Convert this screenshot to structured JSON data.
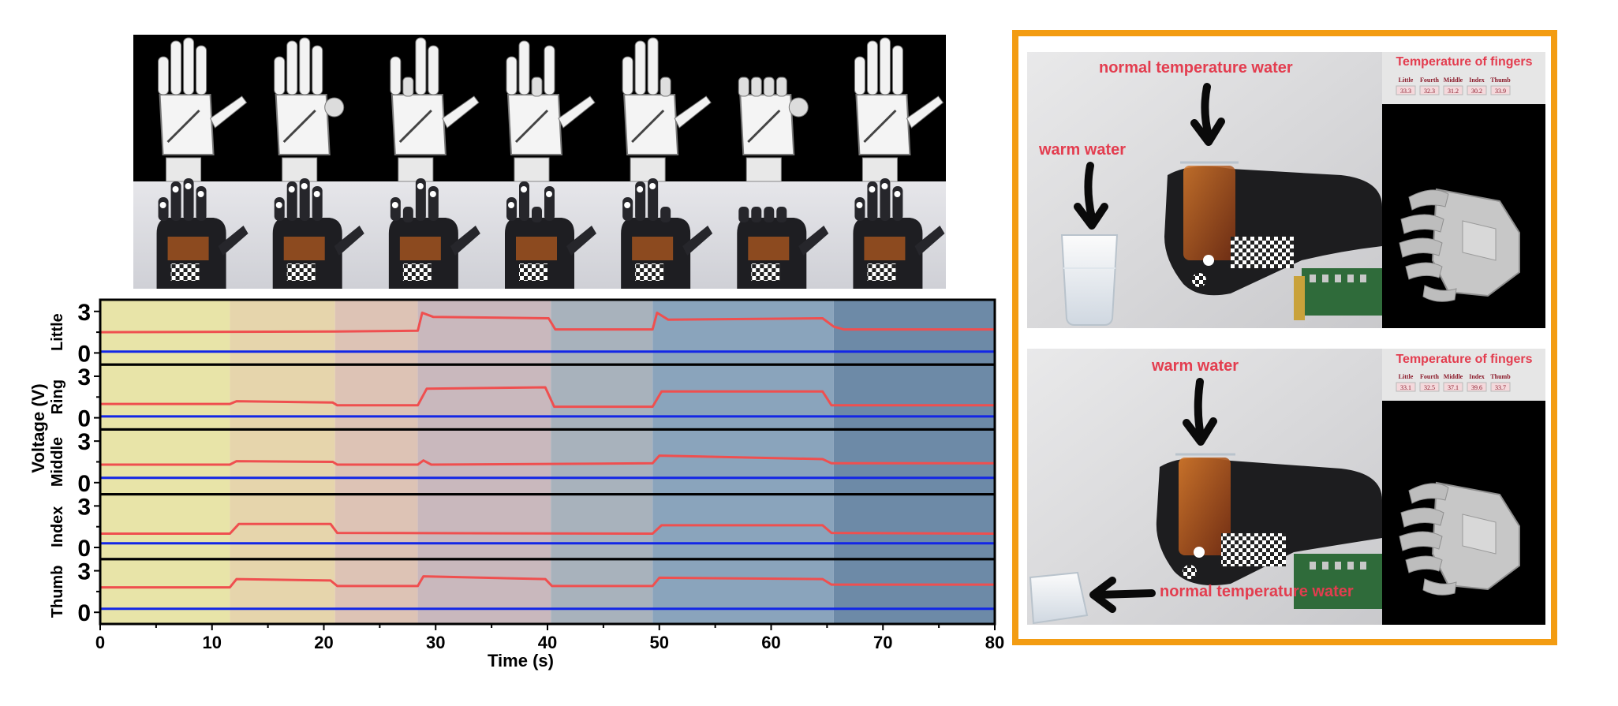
{
  "colors": {
    "orange_frame": "#f39c12",
    "red_signal": "#ef4f4f",
    "blue_signal": "#1226e6",
    "annotation_red": "#e33d4f",
    "phase_colors": [
      "#e8e4a8",
      "#e6d5ac",
      "#ddc3b5",
      "#c9b8bd",
      "#a8b2bc",
      "#8aa4bc",
      "#6d8aa7"
    ]
  },
  "hand_sequence": {
    "gestures": [
      "index-bent",
      "thumb-bent",
      "ring-bent",
      "middle-bent",
      "palm-bent",
      "fist",
      "open"
    ]
  },
  "chart_data": {
    "type": "line",
    "xlabel": "Time (s)",
    "ylabel": "Voltage (V)",
    "xlim": [
      0,
      80
    ],
    "xticks": [
      0,
      10,
      20,
      30,
      40,
      50,
      60,
      70,
      80
    ],
    "yticks": [
      0,
      3
    ],
    "ylim": [
      -0.5,
      3.5
    ],
    "phase_boundaries": [
      0,
      11.6,
      21,
      28.4,
      40.3,
      49.4,
      65.6,
      80
    ],
    "panels": [
      {
        "name": "Little",
        "series": [
          {
            "color": "red",
            "x": [
              0,
              21,
              28.4,
              28.8,
              29.8,
              40.1,
              40.7,
              49.4,
              49.8,
              50.8,
              64.6,
              65.6,
              66.5,
              80
            ],
            "y": [
              1.5,
              1.55,
              1.6,
              2.9,
              2.6,
              2.5,
              1.7,
              1.7,
              2.9,
              2.4,
              2.5,
              1.9,
              1.7,
              1.7
            ]
          },
          {
            "color": "blue",
            "x": [
              0,
              80
            ],
            "y": [
              0.1,
              0.1
            ]
          }
        ]
      },
      {
        "name": "Ring",
        "series": [
          {
            "color": "red",
            "x": [
              0,
              11.6,
              12.2,
              20.8,
              21.2,
              28.4,
              29.2,
              39.8,
              40.6,
              49.4,
              50.2,
              64.6,
              65.4,
              80
            ],
            "y": [
              1.0,
              1.0,
              1.2,
              1.1,
              0.9,
              0.9,
              2.1,
              2.2,
              0.8,
              0.8,
              1.9,
              1.9,
              0.9,
              0.9
            ]
          },
          {
            "color": "blue",
            "x": [
              0,
              80
            ],
            "y": [
              0.1,
              0.1
            ]
          }
        ]
      },
      {
        "name": "Middle",
        "series": [
          {
            "color": "red",
            "x": [
              0,
              11.6,
              12.2,
              20.8,
              21.2,
              28.4,
              28.9,
              29.6,
              49.4,
              50.0,
              64.6,
              65.4,
              80
            ],
            "y": [
              1.3,
              1.3,
              1.55,
              1.5,
              1.3,
              1.3,
              1.6,
              1.3,
              1.4,
              1.95,
              1.7,
              1.4,
              1.4
            ]
          },
          {
            "color": "blue",
            "x": [
              0,
              80
            ],
            "y": [
              0.35,
              0.35
            ]
          }
        ]
      },
      {
        "name": "Index",
        "series": [
          {
            "color": "red",
            "x": [
              0,
              11.6,
              12.4,
              20.6,
              21.2,
              49.4,
              50.2,
              64.6,
              65.4,
              80
            ],
            "y": [
              1.0,
              1.0,
              1.7,
              1.7,
              1.05,
              1.0,
              1.6,
              1.6,
              1.05,
              1.0
            ]
          },
          {
            "color": "blue",
            "x": [
              0,
              80
            ],
            "y": [
              0.3,
              0.3
            ]
          }
        ]
      },
      {
        "name": "Thumb",
        "series": [
          {
            "color": "red",
            "x": [
              0,
              11.6,
              12.2,
              20.6,
              21.2,
              28.4,
              28.9,
              39.8,
              40.4,
              49.4,
              50.0,
              64.6,
              65.4,
              80
            ],
            "y": [
              1.8,
              1.8,
              2.4,
              2.3,
              1.9,
              1.9,
              2.6,
              2.4,
              1.9,
              1.9,
              2.5,
              2.4,
              2.0,
              2.0
            ]
          },
          {
            "color": "blue",
            "x": [
              0,
              80
            ],
            "y": [
              0.25,
              0.25
            ]
          }
        ]
      }
    ]
  },
  "scenes": [
    {
      "screen_title": "Temperature of fingers",
      "finger_names": [
        "Little",
        "Fourth",
        "Middle",
        "Index",
        "Thumb"
      ],
      "finger_temps": [
        "33.3",
        "32.3",
        "31.2",
        "30.2",
        "33.9"
      ],
      "label_a": "normal  temperature water",
      "label_b": "warm water"
    },
    {
      "screen_title": "Temperature of fingers",
      "finger_names": [
        "Little",
        "Fourth",
        "Middle",
        "Index",
        "Thumb"
      ],
      "finger_temps": [
        "33.1",
        "32.5",
        "37.1",
        "39.6",
        "33.7"
      ],
      "label_a": "warm water",
      "label_b": "normal  temperature water"
    }
  ]
}
